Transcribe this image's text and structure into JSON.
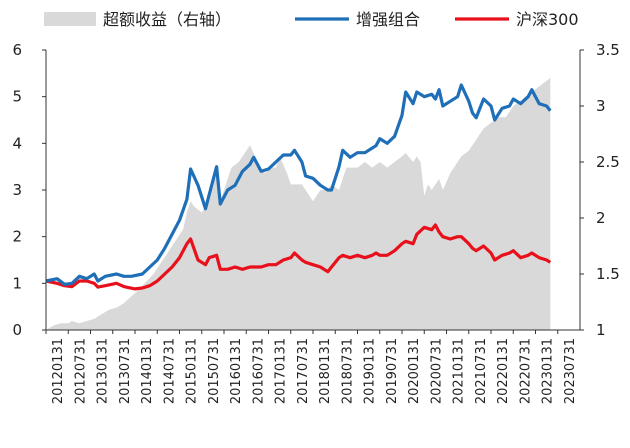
{
  "chart_data": {
    "type": "line",
    "legend": {
      "placement": "top",
      "items": [
        {
          "key": "excess",
          "label": "超额收益（右轴）",
          "color": "#d9d9d9",
          "marker": "area"
        },
        {
          "key": "enhanced",
          "label": "增强组合",
          "color": "#1f6fb8",
          "marker": "line"
        },
        {
          "key": "hs300",
          "label": "沪深300",
          "color": "#e8101a",
          "marker": "line"
        }
      ]
    },
    "left_axis": {
      "ylim": [
        0,
        6
      ],
      "ticks": [
        "0",
        "1",
        "2",
        "3",
        "4",
        "5",
        "6"
      ]
    },
    "right_axis": {
      "ylim": [
        1,
        3.5
      ],
      "ticks": [
        "1",
        "1.5",
        "2",
        "2.5",
        "3",
        "3.5"
      ]
    },
    "x_ticks": [
      "20120131",
      "20120731",
      "20130131",
      "20130731",
      "20140131",
      "20140731",
      "20150131",
      "20150731",
      "20160131",
      "20160731",
      "20170131",
      "20170731",
      "20180131",
      "20180731",
      "20190131",
      "20190731",
      "20200131",
      "20200731",
      "20210131",
      "20210731",
      "20220131",
      "20220731",
      "20230131",
      "20230731"
    ],
    "x_range_months": 144,
    "series": [
      {
        "key": "enhanced",
        "name": "增强组合",
        "axis": "left",
        "color": "#1f6fb8",
        "points": [
          [
            0,
            1.05
          ],
          [
            3,
            1.1
          ],
          [
            5,
            0.98
          ],
          [
            7,
            1.0
          ],
          [
            9,
            1.15
          ],
          [
            11,
            1.1
          ],
          [
            13,
            1.2
          ],
          [
            14,
            1.05
          ],
          [
            16,
            1.15
          ],
          [
            19,
            1.2
          ],
          [
            21,
            1.15
          ],
          [
            23,
            1.15
          ],
          [
            26,
            1.2
          ],
          [
            28,
            1.35
          ],
          [
            30,
            1.5
          ],
          [
            32,
            1.75
          ],
          [
            34,
            2.05
          ],
          [
            36,
            2.35
          ],
          [
            38,
            2.8
          ],
          [
            39,
            3.45
          ],
          [
            41,
            3.1
          ],
          [
            43,
            2.6
          ],
          [
            44,
            2.9
          ],
          [
            46,
            3.5
          ],
          [
            47,
            2.7
          ],
          [
            49,
            3.0
          ],
          [
            51,
            3.1
          ],
          [
            53,
            3.4
          ],
          [
            55,
            3.55
          ],
          [
            56,
            3.7
          ],
          [
            58,
            3.4
          ],
          [
            60,
            3.45
          ],
          [
            62,
            3.6
          ],
          [
            64,
            3.75
          ],
          [
            66,
            3.75
          ],
          [
            67,
            3.85
          ],
          [
            69,
            3.6
          ],
          [
            70,
            3.3
          ],
          [
            72,
            3.25
          ],
          [
            74,
            3.1
          ],
          [
            76,
            3.0
          ],
          [
            77,
            3.0
          ],
          [
            79,
            3.5
          ],
          [
            80,
            3.85
          ],
          [
            82,
            3.7
          ],
          [
            84,
            3.8
          ],
          [
            86,
            3.8
          ],
          [
            88,
            3.9
          ],
          [
            89,
            3.95
          ],
          [
            90,
            4.1
          ],
          [
            92,
            4.0
          ],
          [
            94,
            4.15
          ],
          [
            96,
            4.6
          ],
          [
            97,
            5.1
          ],
          [
            99,
            4.85
          ],
          [
            100,
            5.1
          ],
          [
            102,
            5.0
          ],
          [
            104,
            5.05
          ],
          [
            105,
            4.95
          ],
          [
            106,
            5.15
          ],
          [
            107,
            4.8
          ],
          [
            109,
            4.9
          ],
          [
            111,
            5.0
          ],
          [
            112,
            5.25
          ],
          [
            114,
            4.9
          ],
          [
            115,
            4.65
          ],
          [
            116,
            4.55
          ],
          [
            118,
            4.95
          ],
          [
            120,
            4.8
          ],
          [
            121,
            4.5
          ],
          [
            123,
            4.75
          ],
          [
            125,
            4.8
          ],
          [
            126,
            4.95
          ],
          [
            128,
            4.85
          ],
          [
            130,
            5.0
          ],
          [
            131,
            5.15
          ],
          [
            133,
            4.85
          ],
          [
            135,
            4.8
          ],
          [
            136,
            4.7
          ]
        ]
      },
      {
        "key": "hs300",
        "name": "沪深300",
        "axis": "left",
        "color": "#e8101a",
        "points": [
          [
            0,
            1.05
          ],
          [
            3,
            1.0
          ],
          [
            5,
            0.95
          ],
          [
            7,
            0.93
          ],
          [
            9,
            1.05
          ],
          [
            11,
            1.05
          ],
          [
            13,
            1.0
          ],
          [
            14,
            0.92
          ],
          [
            16,
            0.95
          ],
          [
            19,
            1.0
          ],
          [
            21,
            0.93
          ],
          [
            24,
            0.88
          ],
          [
            26,
            0.9
          ],
          [
            28,
            0.95
          ],
          [
            30,
            1.05
          ],
          [
            32,
            1.2
          ],
          [
            34,
            1.35
          ],
          [
            36,
            1.55
          ],
          [
            38,
            1.85
          ],
          [
            39,
            1.95
          ],
          [
            41,
            1.5
          ],
          [
            43,
            1.4
          ],
          [
            44,
            1.55
          ],
          [
            46,
            1.6
          ],
          [
            47,
            1.3
          ],
          [
            49,
            1.3
          ],
          [
            51,
            1.35
          ],
          [
            53,
            1.3
          ],
          [
            55,
            1.35
          ],
          [
            56,
            1.35
          ],
          [
            58,
            1.35
          ],
          [
            60,
            1.4
          ],
          [
            62,
            1.4
          ],
          [
            64,
            1.5
          ],
          [
            66,
            1.55
          ],
          [
            67,
            1.65
          ],
          [
            69,
            1.5
          ],
          [
            70,
            1.45
          ],
          [
            72,
            1.4
          ],
          [
            74,
            1.35
          ],
          [
            76,
            1.25
          ],
          [
            77,
            1.35
          ],
          [
            79,
            1.55
          ],
          [
            80,
            1.6
          ],
          [
            82,
            1.55
          ],
          [
            84,
            1.6
          ],
          [
            86,
            1.55
          ],
          [
            88,
            1.6
          ],
          [
            89,
            1.65
          ],
          [
            90,
            1.6
          ],
          [
            92,
            1.6
          ],
          [
            94,
            1.7
          ],
          [
            96,
            1.85
          ],
          [
            97,
            1.9
          ],
          [
            99,
            1.85
          ],
          [
            100,
            2.05
          ],
          [
            102,
            2.2
          ],
          [
            104,
            2.15
          ],
          [
            105,
            2.25
          ],
          [
            106,
            2.1
          ],
          [
            107,
            2.0
          ],
          [
            109,
            1.95
          ],
          [
            111,
            2.0
          ],
          [
            112,
            2.0
          ],
          [
            114,
            1.85
          ],
          [
            115,
            1.75
          ],
          [
            116,
            1.7
          ],
          [
            118,
            1.8
          ],
          [
            120,
            1.65
          ],
          [
            121,
            1.5
          ],
          [
            123,
            1.6
          ],
          [
            125,
            1.65
          ],
          [
            126,
            1.7
          ],
          [
            128,
            1.55
          ],
          [
            130,
            1.6
          ],
          [
            131,
            1.65
          ],
          [
            133,
            1.55
          ],
          [
            135,
            1.5
          ],
          [
            136,
            1.45
          ]
        ]
      },
      {
        "key": "excess",
        "name": "超额收益（右轴）",
        "axis": "right",
        "color": "#d9d9d9",
        "points": [
          [
            0,
            1.0
          ],
          [
            2,
            1.04
          ],
          [
            4,
            1.06
          ],
          [
            6,
            1.06
          ],
          [
            7,
            1.08
          ],
          [
            9,
            1.06
          ],
          [
            11,
            1.08
          ],
          [
            13,
            1.1
          ],
          [
            15,
            1.14
          ],
          [
            17,
            1.18
          ],
          [
            19,
            1.2
          ],
          [
            21,
            1.24
          ],
          [
            23,
            1.3
          ],
          [
            25,
            1.36
          ],
          [
            27,
            1.43
          ],
          [
            29,
            1.5
          ],
          [
            31,
            1.6
          ],
          [
            33,
            1.7
          ],
          [
            35,
            1.8
          ],
          [
            37,
            1.9
          ],
          [
            38,
            2.05
          ],
          [
            39,
            2.15
          ],
          [
            40,
            2.1
          ],
          [
            42,
            2.05
          ],
          [
            44,
            2.15
          ],
          [
            46,
            2.4
          ],
          [
            47,
            2.15
          ],
          [
            48,
            2.25
          ],
          [
            50,
            2.45
          ],
          [
            52,
            2.5
          ],
          [
            54,
            2.6
          ],
          [
            55,
            2.65
          ],
          [
            57,
            2.5
          ],
          [
            59,
            2.4
          ],
          [
            61,
            2.45
          ],
          [
            62,
            2.45
          ],
          [
            63,
            2.55
          ],
          [
            65,
            2.4
          ],
          [
            66,
            2.3
          ],
          [
            67,
            2.3
          ],
          [
            69,
            2.3
          ],
          [
            70,
            2.25
          ],
          [
            72,
            2.15
          ],
          [
            74,
            2.25
          ],
          [
            76,
            2.25
          ],
          [
            77,
            2.3
          ],
          [
            79,
            2.25
          ],
          [
            81,
            2.45
          ],
          [
            82,
            2.45
          ],
          [
            84,
            2.45
          ],
          [
            86,
            2.5
          ],
          [
            88,
            2.45
          ],
          [
            90,
            2.5
          ],
          [
            92,
            2.45
          ],
          [
            94,
            2.5
          ],
          [
            96,
            2.55
          ],
          [
            97,
            2.58
          ],
          [
            99,
            2.5
          ],
          [
            100,
            2.55
          ],
          [
            101,
            2.5
          ],
          [
            102,
            2.2
          ],
          [
            103,
            2.3
          ],
          [
            104,
            2.25
          ],
          [
            106,
            2.35
          ],
          [
            107,
            2.25
          ],
          [
            109,
            2.4
          ],
          [
            111,
            2.5
          ],
          [
            112,
            2.55
          ],
          [
            114,
            2.6
          ],
          [
            116,
            2.7
          ],
          [
            118,
            2.8
          ],
          [
            120,
            2.85
          ],
          [
            122,
            2.9
          ],
          [
            124,
            2.9
          ],
          [
            126,
            3.0
          ],
          [
            128,
            3.05
          ],
          [
            130,
            3.1
          ],
          [
            132,
            3.15
          ],
          [
            134,
            3.2
          ],
          [
            136,
            3.25
          ]
        ]
      }
    ]
  }
}
